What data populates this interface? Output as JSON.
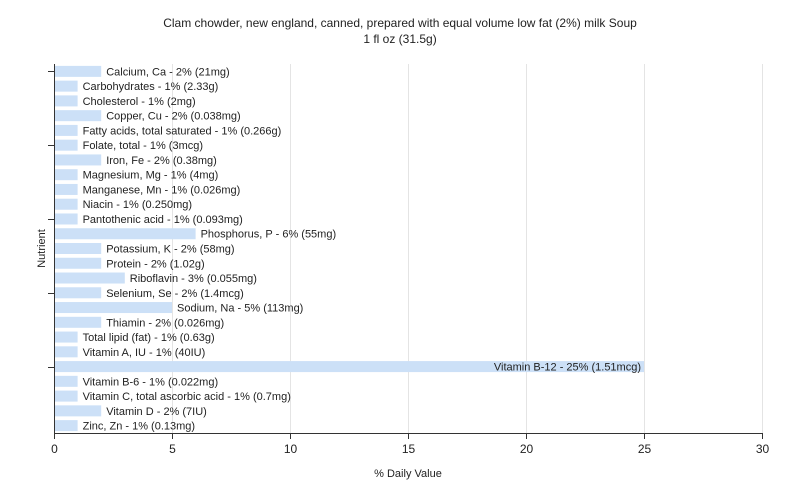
{
  "chart_data": {
    "type": "bar",
    "orientation": "horizontal",
    "title": "Clam chowder, new england, canned, prepared with equal volume low fat (2%) milk Soup",
    "subtitle": "1 fl oz (31.5g)",
    "xlabel": "% Daily Value",
    "ylabel": "Nutrient",
    "xlim": [
      0,
      30
    ],
    "xticks": [
      0,
      5,
      10,
      15,
      20,
      25,
      30
    ],
    "grid": true,
    "bar_color": "#cce0f7",
    "categories": [
      "Calcium, Ca",
      "Carbohydrates",
      "Cholesterol",
      "Copper, Cu",
      "Fatty acids, total saturated",
      "Folate, total",
      "Iron, Fe",
      "Magnesium, Mg",
      "Manganese, Mn",
      "Niacin",
      "Pantothenic acid",
      "Phosphorus, P",
      "Potassium, K",
      "Protein",
      "Riboflavin",
      "Selenium, Se",
      "Sodium, Na",
      "Thiamin",
      "Total lipid (fat)",
      "Vitamin A, IU",
      "Vitamin B-12",
      "Vitamin B-6",
      "Vitamin C, total ascorbic acid",
      "Vitamin D",
      "Zinc, Zn"
    ],
    "values": [
      2,
      1,
      1,
      2,
      1,
      1,
      2,
      1,
      1,
      1,
      1,
      6,
      2,
      2,
      3,
      2,
      5,
      2,
      1,
      1,
      25,
      1,
      1,
      2,
      1
    ],
    "labels": [
      "Calcium, Ca - 2% (21mg)",
      "Carbohydrates - 1% (2.33g)",
      "Cholesterol - 1% (2mg)",
      "Copper, Cu - 2% (0.038mg)",
      "Fatty acids, total saturated - 1% (0.266g)",
      "Folate, total - 1% (3mcg)",
      "Iron, Fe - 2% (0.38mg)",
      "Magnesium, Mg - 1% (4mg)",
      "Manganese, Mn - 1% (0.026mg)",
      "Niacin - 1% (0.250mg)",
      "Pantothenic acid - 1% (0.093mg)",
      "Phosphorus, P - 6% (55mg)",
      "Potassium, K - 2% (58mg)",
      "Protein - 2% (1.02g)",
      "Riboflavin - 3% (0.055mg)",
      "Selenium, Se - 2% (1.4mcg)",
      "Sodium, Na - 5% (113mg)",
      "Thiamin - 2% (0.026mg)",
      "Total lipid (fat) - 1% (0.63g)",
      "Vitamin A, IU - 1% (40IU)",
      "Vitamin B-12 - 25% (1.51mcg)",
      "Vitamin B-6 - 1% (0.022mg)",
      "Vitamin C, total ascorbic acid - 1% (0.7mg)",
      "Vitamin D - 2% (7IU)",
      "Zinc, Zn - 1% (0.13mg)"
    ]
  }
}
